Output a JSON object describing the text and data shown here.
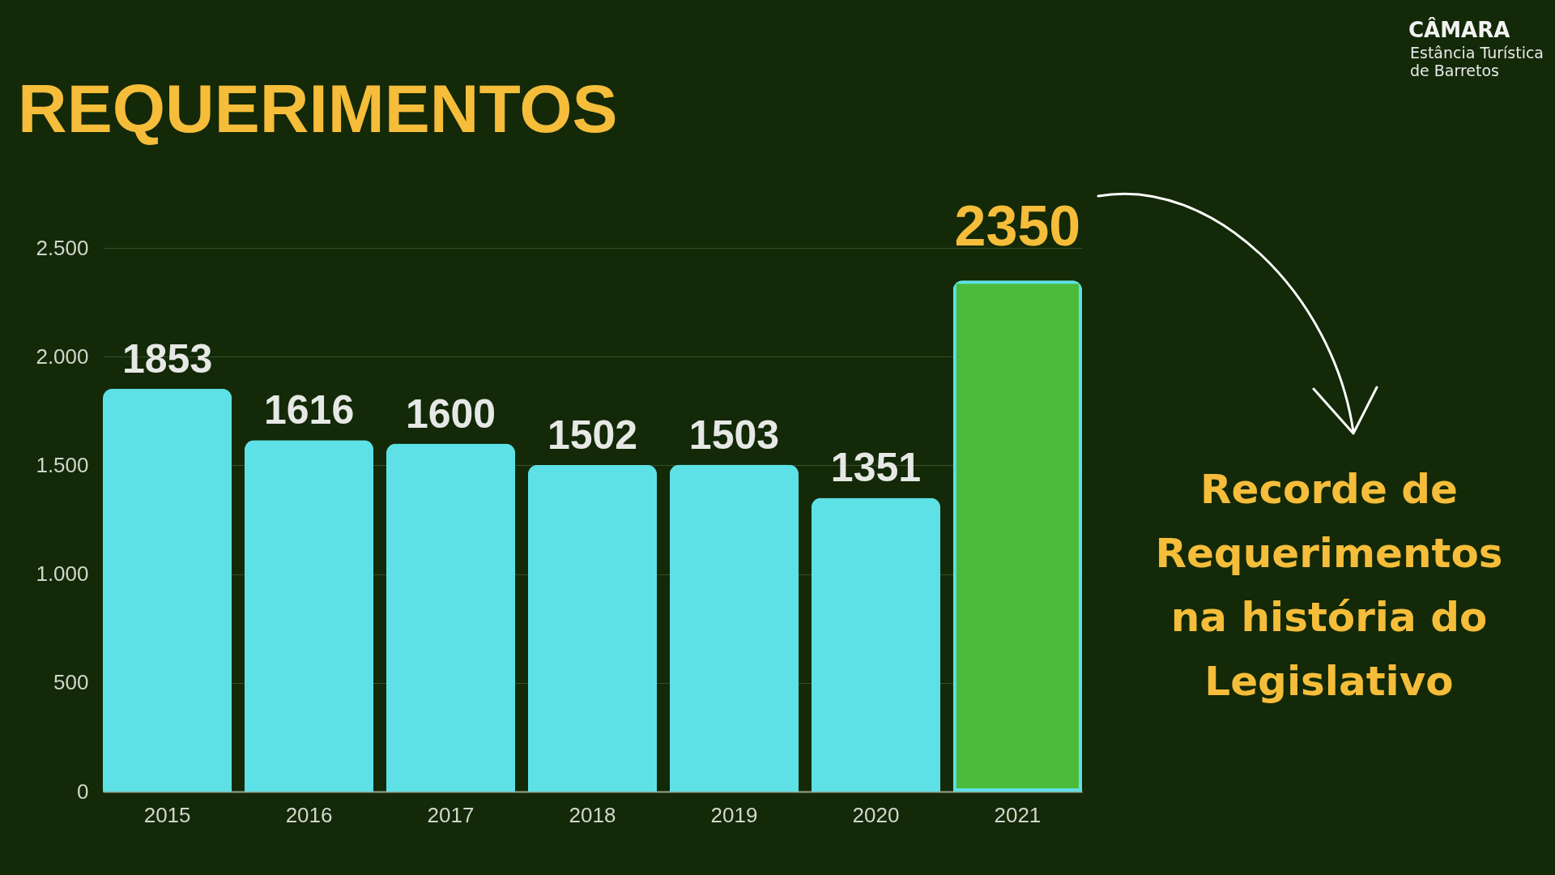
{
  "chart_data": {
    "type": "bar",
    "title": "REQUERIMENTOS",
    "categories": [
      "2015",
      "2016",
      "2017",
      "2018",
      "2019",
      "2020",
      "2021"
    ],
    "values": [
      1853,
      1616,
      1600,
      1502,
      1503,
      1351,
      2350
    ],
    "colors": [
      "#5ee1e6",
      "#5ee1e6",
      "#5ee1e6",
      "#5ee1e6",
      "#5ee1e6",
      "#5ee1e6",
      "#4cbb3c"
    ],
    "ylim": [
      0,
      2500
    ],
    "yticks": [
      0,
      500,
      {
        "value": 1000,
        "label": "1.000"
      },
      {
        "value": 1500,
        "label": "1.500"
      },
      {
        "value": 2000,
        "label": "2.000"
      },
      {
        "value": 2500,
        "label": "2.500"
      }
    ],
    "grid": "y",
    "data_labels": true,
    "annotations": [
      "Recorde de Requerimentos na história do Legislativo",
      "CÂMARA",
      "Estância Turística de Barretos"
    ]
  }
}
